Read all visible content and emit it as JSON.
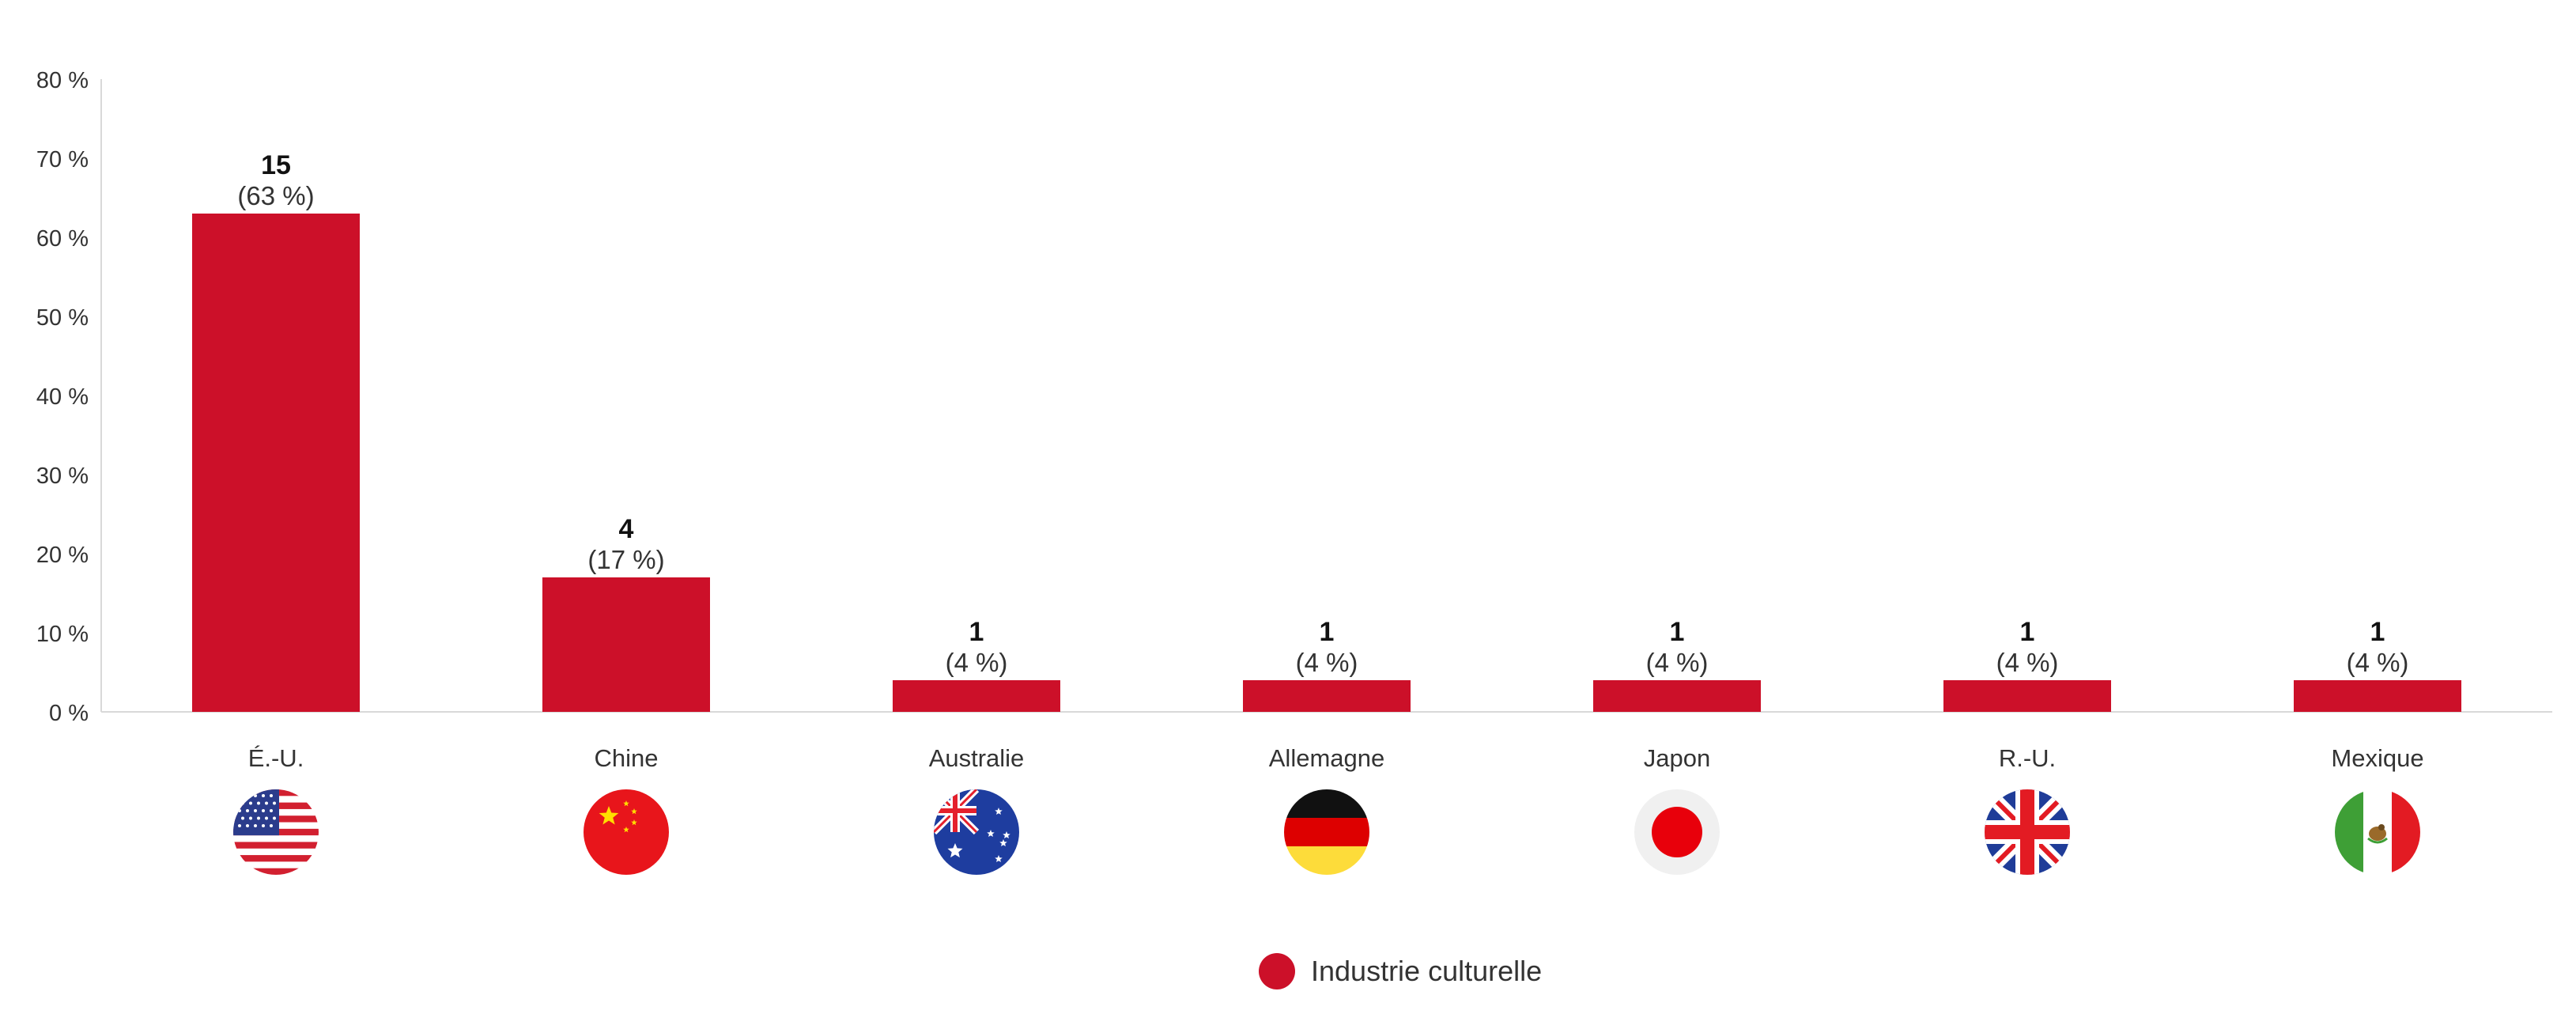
{
  "chart_data": {
    "type": "bar",
    "categories": [
      "É.-U.",
      "Chine",
      "Australie",
      "Allemagne",
      "Japon",
      "R.-U.",
      "Mexique"
    ],
    "flags": [
      "us-flag-icon",
      "china-flag-icon",
      "australia-flag-icon",
      "germany-flag-icon",
      "japan-flag-icon",
      "uk-flag-icon",
      "mexico-flag-icon"
    ],
    "counts": [
      "15",
      "4",
      "1",
      "1",
      "1",
      "1",
      "1"
    ],
    "labels": [
      "(63 %)",
      "(17 %)",
      "(4 %)",
      "(4 %)",
      "(4 %)",
      "(4 %)",
      "(4 %)"
    ],
    "series": [
      {
        "name": "Industrie culturelle",
        "values": [
          63,
          17,
          4,
          4,
          4,
          4,
          4
        ]
      }
    ],
    "ylim": [
      0,
      80
    ],
    "yticks": [
      "0 %",
      "10 %",
      "20 %",
      "30 %",
      "40 %",
      "50 %",
      "60 %",
      "70 %",
      "80 %"
    ],
    "grid": false,
    "legend_position": "bottom-center",
    "bar_color": "#cc1029"
  },
  "legend": {
    "label": "Industrie culturelle",
    "color": "#cc1029"
  }
}
